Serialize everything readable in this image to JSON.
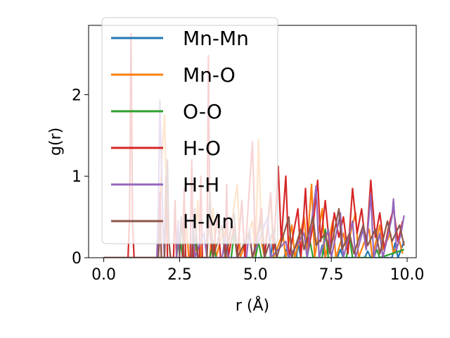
{
  "chart_data": {
    "type": "line",
    "xlabel": "r (Å)",
    "ylabel": "g(r)",
    "xlim": [
      -0.5,
      10.3
    ],
    "ylim": [
      0,
      2.85
    ],
    "xticks": [
      0.0,
      2.5,
      5.0,
      7.5,
      10.0
    ],
    "xtick_labels": [
      "0.0",
      "2.5",
      "5.0",
      "7.5",
      "10.0"
    ],
    "yticks": [
      0,
      1,
      2
    ],
    "ytick_labels": [
      "0",
      "1",
      "2"
    ],
    "grid": false,
    "legend_position": "upper-left",
    "series": [
      {
        "name": "Mn-Mn",
        "color": "#1f77b4",
        "points": [
          [
            0,
            0
          ],
          [
            5.5,
            0
          ],
          [
            5.6,
            0.28
          ],
          [
            5.7,
            0
          ],
          [
            5.95,
            0
          ],
          [
            6.0,
            0.1
          ],
          [
            6.1,
            0
          ],
          [
            6.35,
            0
          ],
          [
            6.4,
            0.18
          ],
          [
            6.5,
            0
          ],
          [
            7.1,
            0
          ],
          [
            7.2,
            0.15
          ],
          [
            7.3,
            0
          ],
          [
            7.7,
            0
          ],
          [
            7.8,
            0.1
          ],
          [
            7.9,
            0
          ],
          [
            8.6,
            0
          ],
          [
            8.7,
            0.08
          ],
          [
            8.8,
            0
          ],
          [
            9.5,
            0
          ],
          [
            9.6,
            0.18
          ],
          [
            9.7,
            0
          ],
          [
            9.9,
            0.2
          ]
        ]
      },
      {
        "name": "Mn-O",
        "color": "#ff7f0e",
        "points": [
          [
            0,
            0
          ],
          [
            1.8,
            0
          ],
          [
            1.9,
            1.1
          ],
          [
            2.0,
            1.75
          ],
          [
            2.1,
            0.4
          ],
          [
            2.2,
            0
          ],
          [
            2.6,
            0
          ],
          [
            2.7,
            0.55
          ],
          [
            2.8,
            0
          ],
          [
            3.0,
            0
          ],
          [
            3.1,
            0.7
          ],
          [
            3.2,
            0
          ],
          [
            3.5,
            0
          ],
          [
            3.6,
            0.6
          ],
          [
            3.7,
            0
          ],
          [
            3.95,
            0.35
          ],
          [
            4.05,
            0
          ],
          [
            4.4,
            0.9
          ],
          [
            4.5,
            0
          ],
          [
            4.9,
            0.45
          ],
          [
            5.0,
            0
          ],
          [
            5.1,
            1.45
          ],
          [
            5.2,
            0.2
          ],
          [
            5.3,
            0
          ],
          [
            5.5,
            0.75
          ],
          [
            5.6,
            0
          ],
          [
            5.9,
            0.3
          ],
          [
            6.0,
            0
          ],
          [
            6.2,
            0.4
          ],
          [
            6.3,
            0
          ],
          [
            6.6,
            0.5
          ],
          [
            6.7,
            0.1
          ],
          [
            6.85,
            0.9
          ],
          [
            6.95,
            0
          ],
          [
            7.2,
            0.6
          ],
          [
            7.3,
            0
          ],
          [
            7.55,
            0.45
          ],
          [
            7.65,
            0
          ],
          [
            7.9,
            0.3
          ],
          [
            8.0,
            0.1
          ],
          [
            8.3,
            0.55
          ],
          [
            8.4,
            0
          ],
          [
            8.75,
            0.35
          ],
          [
            8.85,
            0
          ],
          [
            9.1,
            0.4
          ],
          [
            9.2,
            0.1
          ],
          [
            9.45,
            0.3
          ],
          [
            9.55,
            0.05
          ],
          [
            9.75,
            0.2
          ],
          [
            9.85,
            0.05
          ]
        ]
      },
      {
        "name": "O-O",
        "color": "#2ca02c",
        "points": [
          [
            0,
            0
          ],
          [
            2.4,
            0
          ],
          [
            2.5,
            0.3
          ],
          [
            2.6,
            0
          ],
          [
            2.9,
            0
          ],
          [
            3.0,
            0.25
          ],
          [
            3.1,
            0
          ],
          [
            3.5,
            0
          ],
          [
            3.6,
            0.2
          ],
          [
            3.7,
            0
          ],
          [
            4.2,
            0
          ],
          [
            4.3,
            0.3
          ],
          [
            4.4,
            0
          ],
          [
            5.0,
            0
          ],
          [
            5.1,
            0.2
          ],
          [
            5.2,
            0
          ],
          [
            6.7,
            0
          ],
          [
            6.8,
            0.2
          ],
          [
            6.9,
            0
          ],
          [
            7.2,
            0
          ],
          [
            7.3,
            0.35
          ],
          [
            7.4,
            0
          ],
          [
            8.0,
            0
          ],
          [
            8.1,
            0.25
          ],
          [
            8.2,
            0
          ],
          [
            8.9,
            0
          ],
          [
            9.0,
            0.1
          ],
          [
            9.1,
            0
          ],
          [
            9.9,
            0.1
          ]
        ]
      },
      {
        "name": "H-O",
        "color": "#d62728",
        "points": [
          [
            0,
            0
          ],
          [
            0.8,
            0
          ],
          [
            0.85,
            0.5
          ],
          [
            0.9,
            2.75
          ],
          [
            0.95,
            0.4
          ],
          [
            1.0,
            0
          ],
          [
            1.8,
            0
          ],
          [
            1.85,
            0.8
          ],
          [
            1.9,
            0
          ],
          [
            2.0,
            0
          ],
          [
            2.05,
            1.0
          ],
          [
            2.1,
            0
          ],
          [
            2.3,
            0
          ],
          [
            2.35,
            0.7
          ],
          [
            2.4,
            0
          ],
          [
            2.6,
            0
          ],
          [
            2.65,
            0.85
          ],
          [
            2.7,
            0
          ],
          [
            2.85,
            0
          ],
          [
            2.9,
            1.2
          ],
          [
            2.95,
            0
          ],
          [
            3.15,
            0
          ],
          [
            3.2,
            1.0
          ],
          [
            3.25,
            0
          ],
          [
            3.4,
            0
          ],
          [
            3.45,
            2.48
          ],
          [
            3.5,
            0.3
          ],
          [
            3.6,
            0
          ],
          [
            3.75,
            0.55
          ],
          [
            3.85,
            0
          ],
          [
            4.0,
            0
          ],
          [
            4.05,
            0.9
          ],
          [
            4.1,
            0
          ],
          [
            4.3,
            0.4
          ],
          [
            4.4,
            0
          ],
          [
            4.55,
            0.7
          ],
          [
            4.65,
            0
          ],
          [
            4.9,
            1.42
          ],
          [
            5.0,
            0.1
          ],
          [
            5.2,
            0.6
          ],
          [
            5.3,
            0
          ],
          [
            5.5,
            0.8
          ],
          [
            5.6,
            0.1
          ],
          [
            5.75,
            1.12
          ],
          [
            5.85,
            0.2
          ],
          [
            6.0,
            1.0
          ],
          [
            6.1,
            0
          ],
          [
            6.25,
            0.3
          ],
          [
            6.4,
            0.6
          ],
          [
            6.5,
            0
          ],
          [
            6.65,
            0.85
          ],
          [
            6.75,
            0.1
          ],
          [
            6.9,
            0.4
          ],
          [
            7.05,
            0.95
          ],
          [
            7.15,
            0.2
          ],
          [
            7.3,
            0.7
          ],
          [
            7.45,
            0.1
          ],
          [
            7.6,
            0.55
          ],
          [
            7.75,
            0.25
          ],
          [
            7.9,
            0.5
          ],
          [
            8.05,
            0.05
          ],
          [
            8.2,
            0.85
          ],
          [
            8.35,
            0.3
          ],
          [
            8.5,
            0.6
          ],
          [
            8.65,
            0.1
          ],
          [
            8.8,
            0.95
          ],
          [
            8.95,
            0.25
          ],
          [
            9.1,
            0.55
          ],
          [
            9.25,
            0.1
          ],
          [
            9.4,
            0.4
          ],
          [
            9.55,
            0.6
          ],
          [
            9.7,
            0.2
          ],
          [
            9.85,
            0.45
          ]
        ]
      },
      {
        "name": "H-H",
        "color": "#9467bd",
        "points": [
          [
            0,
            0
          ],
          [
            1.75,
            0
          ],
          [
            1.8,
            0.6
          ],
          [
            1.85,
            1.93
          ],
          [
            1.95,
            0.4
          ],
          [
            2.0,
            0
          ],
          [
            2.4,
            0
          ],
          [
            2.45,
            0.45
          ],
          [
            2.5,
            0
          ],
          [
            2.9,
            0
          ],
          [
            2.95,
            0.5
          ],
          [
            3.0,
            0
          ],
          [
            3.3,
            0.3
          ],
          [
            3.4,
            0
          ],
          [
            3.9,
            0
          ],
          [
            4.0,
            0.25
          ],
          [
            4.1,
            0
          ],
          [
            4.7,
            0
          ],
          [
            4.8,
            0.35
          ],
          [
            4.9,
            0
          ],
          [
            5.4,
            0.5
          ],
          [
            5.5,
            0
          ],
          [
            6.0,
            0.2
          ],
          [
            6.1,
            0
          ],
          [
            6.6,
            0.3
          ],
          [
            6.7,
            0
          ],
          [
            7.0,
            0.88
          ],
          [
            7.1,
            0
          ],
          [
            7.4,
            0.35
          ],
          [
            7.5,
            0
          ],
          [
            7.8,
            0.55
          ],
          [
            7.9,
            0
          ],
          [
            8.2,
            0.45
          ],
          [
            8.3,
            0
          ],
          [
            8.55,
            0.35
          ],
          [
            8.65,
            0.1
          ],
          [
            8.8,
            0.78
          ],
          [
            8.9,
            0
          ],
          [
            9.1,
            0.3
          ],
          [
            9.2,
            0
          ],
          [
            9.5,
            0.5
          ],
          [
            9.55,
            0.72
          ],
          [
            9.65,
            0.1
          ],
          [
            9.8,
            0.3
          ],
          [
            9.9,
            0.52
          ]
        ]
      },
      {
        "name": "H-Mn",
        "color": "#8c564b",
        "points": [
          [
            0,
            0
          ],
          [
            1.8,
            0
          ],
          [
            1.85,
            0.4
          ],
          [
            1.9,
            0
          ],
          [
            2.0,
            0
          ],
          [
            2.1,
            1.2
          ],
          [
            2.15,
            0.2
          ],
          [
            2.2,
            0
          ],
          [
            2.5,
            0
          ],
          [
            2.55,
            0.5
          ],
          [
            2.65,
            0
          ],
          [
            2.9,
            0
          ],
          [
            3.0,
            0.6
          ],
          [
            3.1,
            0
          ],
          [
            3.4,
            0
          ],
          [
            3.5,
            0.8
          ],
          [
            3.6,
            0
          ],
          [
            3.9,
            0.4
          ],
          [
            4.0,
            0
          ],
          [
            4.3,
            0.55
          ],
          [
            4.4,
            0
          ],
          [
            4.8,
            0.3
          ],
          [
            4.9,
            0
          ],
          [
            5.2,
            0.45
          ],
          [
            5.3,
            0
          ],
          [
            5.6,
            0.35
          ],
          [
            5.7,
            0
          ],
          [
            6.1,
            0.5
          ],
          [
            6.2,
            0
          ],
          [
            6.5,
            0.35
          ],
          [
            6.6,
            0.1
          ],
          [
            6.9,
            0.5
          ],
          [
            7.0,
            0.15
          ],
          [
            7.3,
            0.3
          ],
          [
            7.45,
            0.05
          ],
          [
            7.75,
            0.6
          ],
          [
            7.85,
            0.1
          ],
          [
            8.1,
            0.3
          ],
          [
            8.25,
            0.05
          ],
          [
            8.55,
            0.4
          ],
          [
            8.7,
            0.15
          ],
          [
            8.95,
            0.35
          ],
          [
            9.1,
            0.05
          ],
          [
            9.35,
            0.45
          ],
          [
            9.5,
            0.2
          ],
          [
            9.75,
            0.4
          ],
          [
            9.9,
            0.15
          ]
        ]
      }
    ]
  }
}
